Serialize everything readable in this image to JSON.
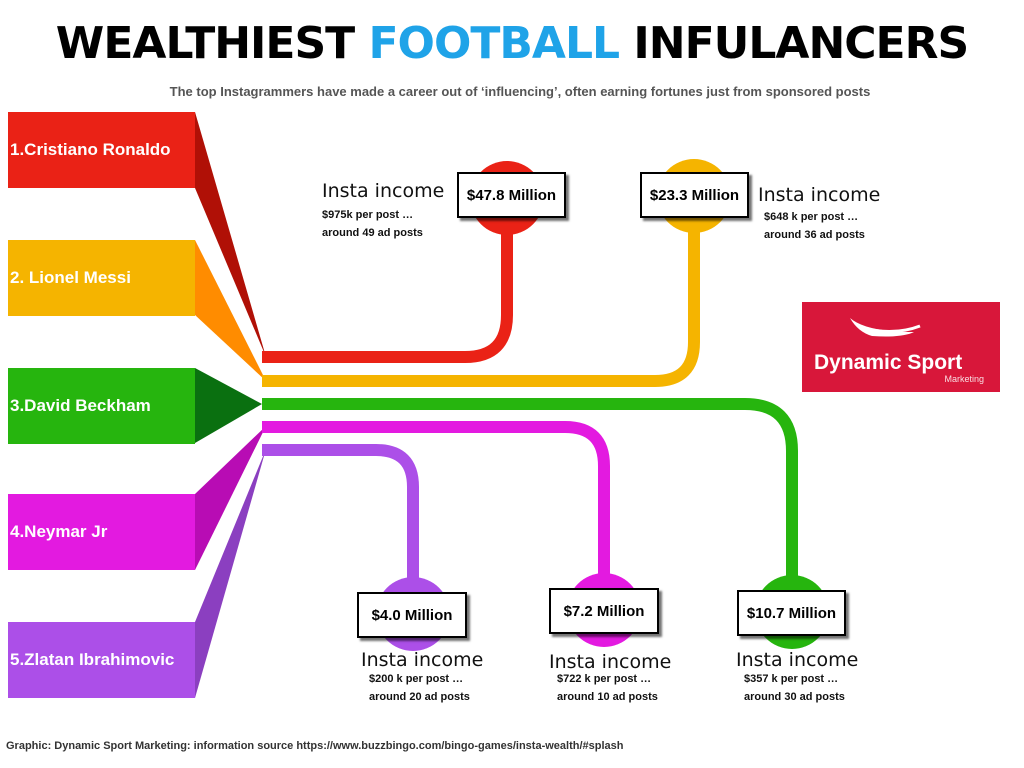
{
  "title": {
    "part1": "WEALTHIEST",
    "accent": "FOOTBALL",
    "part2": "INFULANCERS"
  },
  "subtitle": "The top Instagrammers have made a career out of ‘influencing’, often earning fortunes just from sponsored posts",
  "colors": {
    "accent": "#1fa3e8",
    "logo_bg": "#d8173a"
  },
  "players": [
    {
      "label": "1.Cristiano Ronaldo",
      "income": "$47.8 Million",
      "insta_label": "Insta income",
      "per_post": "$975k per post …",
      "ad_posts": "around 49 ad posts",
      "color": "#ea2216"
    },
    {
      "label": "2. Lionel Messi",
      "income": "$23.3 Million",
      "insta_label": "Insta income",
      "per_post": "$648 k per post …",
      "ad_posts": "around 36 ad posts",
      "color": "#f5b400"
    },
    {
      "label": "3.David Beckham",
      "income": "$10.7 Million",
      "insta_label": "Insta income",
      "per_post": "$357 k per post …",
      "ad_posts": "around 30 ad posts",
      "color": "#26b50e"
    },
    {
      "label": "4.Neymar Jr",
      "income": "$7.2 Million",
      "insta_label": "Insta income",
      "per_post": "$722 k per post …",
      "ad_posts": "around 10 ad posts",
      "color": "#e31ae0"
    },
    {
      "label": "5.Zlatan Ibrahimovic",
      "income": "$4.0 Million",
      "insta_label": "Insta income",
      "per_post": "$200 k per post …",
      "ad_posts": "around 20 ad posts",
      "color": "#ac4fe8"
    }
  ],
  "logo": {
    "name": "Dynamic Sport",
    "sub": "Marketing"
  },
  "footer": "Graphic: Dynamic Sport Marketing: information source https://www.buzzbingo.com/bingo-games/insta-wealth/#splash"
}
